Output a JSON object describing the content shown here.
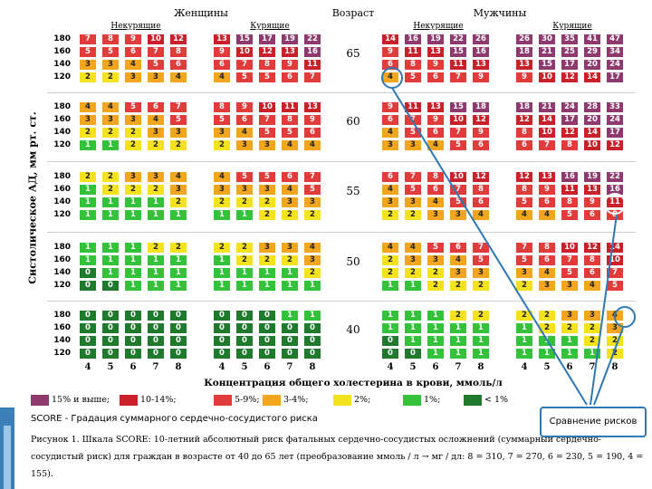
{
  "chart_data": {
    "type": "table",
    "title": "SCORE",
    "header": {
      "women": "Женщины",
      "age": "Возраст",
      "men": "Мужчины",
      "non_smokers": "Некурящие",
      "smokers": "Курящие"
    },
    "ylabel": "Систолическое АД, мм рт. ст.",
    "xlabel": "Концентрация общего холестерина в крови, ммоль/л",
    "bp_levels": [
      "180",
      "160",
      "140",
      "120"
    ],
    "cholesterol": [
      "4",
      "5",
      "6",
      "7",
      "8"
    ],
    "blocks": [
      {
        "age": "65",
        "women_non": [
          [
            "7",
            "8",
            "9",
            "10",
            "12"
          ],
          [
            "5",
            "5",
            "6",
            "7",
            "8"
          ],
          [
            "3",
            "3",
            "4",
            "5",
            "6"
          ],
          [
            "2",
            "2",
            "3",
            "3",
            "4"
          ]
        ],
        "women_smk": [
          [
            "13",
            "15",
            "17",
            "19",
            "22"
          ],
          [
            "9",
            "10",
            "12",
            "13",
            "16"
          ],
          [
            "6",
            "7",
            "8",
            "9",
            "11"
          ],
          [
            "4",
            "5",
            "5",
            "6",
            "7"
          ]
        ],
        "men_non": [
          [
            "14",
            "16",
            "19",
            "22",
            "26"
          ],
          [
            "9",
            "11",
            "13",
            "15",
            "16"
          ],
          [
            "6",
            "8",
            "9",
            "11",
            "13"
          ],
          [
            "4",
            "5",
            "6",
            "7",
            "9"
          ]
        ],
        "men_smk": [
          [
            "26",
            "30",
            "35",
            "41",
            "47"
          ],
          [
            "18",
            "21",
            "25",
            "29",
            "34"
          ],
          [
            "13",
            "15",
            "17",
            "20",
            "24"
          ],
          [
            "9",
            "10",
            "12",
            "14",
            "17"
          ]
        ]
      },
      {
        "age": "60",
        "women_non": [
          [
            "4",
            "4",
            "5",
            "6",
            "7"
          ],
          [
            "3",
            "3",
            "3",
            "4",
            "5"
          ],
          [
            "2",
            "2",
            "2",
            "3",
            "3"
          ],
          [
            "1",
            "1",
            "2",
            "2",
            "2"
          ]
        ],
        "women_smk": [
          [
            "8",
            "9",
            "10",
            "11",
            "13"
          ],
          [
            "5",
            "6",
            "7",
            "8",
            "9"
          ],
          [
            "3",
            "4",
            "5",
            "5",
            "6"
          ],
          [
            "2",
            "3",
            "3",
            "4",
            "4"
          ]
        ],
        "men_non": [
          [
            "9",
            "11",
            "13",
            "15",
            "18"
          ],
          [
            "6",
            "7",
            "9",
            "10",
            "12"
          ],
          [
            "4",
            "5",
            "6",
            "7",
            "9"
          ],
          [
            "3",
            "3",
            "4",
            "5",
            "6"
          ]
        ],
        "men_smk": [
          [
            "18",
            "21",
            "24",
            "28",
            "33"
          ],
          [
            "12",
            "14",
            "17",
            "20",
            "24"
          ],
          [
            "8",
            "10",
            "12",
            "14",
            "17"
          ],
          [
            "6",
            "7",
            "8",
            "10",
            "12"
          ]
        ]
      },
      {
        "age": "55",
        "women_non": [
          [
            "2",
            "2",
            "3",
            "3",
            "4"
          ],
          [
            "1",
            "2",
            "2",
            "2",
            "3"
          ],
          [
            "1",
            "1",
            "1",
            "1",
            "2"
          ],
          [
            "1",
            "1",
            "1",
            "1",
            "1"
          ]
        ],
        "women_smk": [
          [
            "4",
            "5",
            "5",
            "6",
            "7"
          ],
          [
            "3",
            "3",
            "3",
            "4",
            "5"
          ],
          [
            "2",
            "2",
            "2",
            "3",
            "3"
          ],
          [
            "1",
            "1",
            "2",
            "2",
            "2"
          ]
        ],
        "men_non": [
          [
            "6",
            "7",
            "8",
            "10",
            "12"
          ],
          [
            "4",
            "5",
            "6",
            "7",
            "8"
          ],
          [
            "3",
            "3",
            "4",
            "5",
            "6"
          ],
          [
            "2",
            "2",
            "3",
            "3",
            "4"
          ]
        ],
        "men_smk": [
          [
            "12",
            "13",
            "16",
            "19",
            "22"
          ],
          [
            "8",
            "9",
            "11",
            "13",
            "16"
          ],
          [
            "5",
            "6",
            "8",
            "9",
            "11"
          ],
          [
            "4",
            "4",
            "5",
            "6",
            "8"
          ]
        ]
      },
      {
        "age": "50",
        "women_non": [
          [
            "1",
            "1",
            "1",
            "2",
            "2"
          ],
          [
            "1",
            "1",
            "1",
            "1",
            "1"
          ],
          [
            "0",
            "1",
            "1",
            "1",
            "1"
          ],
          [
            "0",
            "0",
            "1",
            "1",
            "1"
          ]
        ],
        "women_smk": [
          [
            "2",
            "2",
            "3",
            "3",
            "4"
          ],
          [
            "1",
            "2",
            "2",
            "2",
            "3"
          ],
          [
            "1",
            "1",
            "1",
            "1",
            "2"
          ],
          [
            "1",
            "1",
            "1",
            "1",
            "1"
          ]
        ],
        "men_non": [
          [
            "4",
            "4",
            "5",
            "6",
            "7"
          ],
          [
            "2",
            "3",
            "3",
            "4",
            "5"
          ],
          [
            "2",
            "2",
            "2",
            "3",
            "3"
          ],
          [
            "1",
            "1",
            "2",
            "2",
            "2"
          ]
        ],
        "men_smk": [
          [
            "7",
            "8",
            "10",
            "12",
            "14"
          ],
          [
            "5",
            "6",
            "7",
            "8",
            "10"
          ],
          [
            "3",
            "4",
            "5",
            "6",
            "7"
          ],
          [
            "2",
            "3",
            "3",
            "4",
            "5"
          ]
        ]
      },
      {
        "age": "40",
        "women_non": [
          [
            "0",
            "0",
            "0",
            "0",
            "0"
          ],
          [
            "0",
            "0",
            "0",
            "0",
            "0"
          ],
          [
            "0",
            "0",
            "0",
            "0",
            "0"
          ],
          [
            "0",
            "0",
            "0",
            "0",
            "0"
          ]
        ],
        "women_smk": [
          [
            "0",
            "0",
            "0",
            "1",
            "1"
          ],
          [
            "0",
            "0",
            "0",
            "0",
            "0"
          ],
          [
            "0",
            "0",
            "0",
            "0",
            "0"
          ],
          [
            "0",
            "0",
            "0",
            "0",
            "0"
          ]
        ],
        "men_non": [
          [
            "1",
            "1",
            "1",
            "2",
            "2"
          ],
          [
            "1",
            "1",
            "1",
            "1",
            "1"
          ],
          [
            "0",
            "1",
            "1",
            "1",
            "1"
          ],
          [
            "0",
            "0",
            "1",
            "1",
            "1"
          ]
        ],
        "men_smk": [
          [
            "2",
            "2",
            "3",
            "3",
            "4"
          ],
          [
            "1",
            "2",
            "2",
            "2",
            "3"
          ],
          [
            "1",
            "1",
            "1",
            "2",
            "2"
          ],
          [
            "1",
            "1",
            "1",
            "1",
            "2"
          ]
        ]
      }
    ],
    "legend": [
      {
        "label": "15% и выше;",
        "color": "#8e3a6e"
      },
      {
        "label": "10-14%;",
        "color": "#c9202a"
      },
      {
        "label": "5-9%;",
        "color": "#e23b3b"
      },
      {
        "label": "3-4%;",
        "color": "#f2a61d"
      },
      {
        "label": "2%;",
        "color": "#f4e31c"
      },
      {
        "label": "1%;",
        "color": "#33c23a"
      },
      {
        "label": "< 1%",
        "color": "#1f7a2e"
      }
    ],
    "highlights": [
      "men_smk 55/140 chol 7 = 9",
      "men_non 65/120 chol 4 = 4",
      "men_smk 40/180 chol 8 = 4"
    ]
  },
  "score_caption": "SCORE - Градация суммарного сердечно-сосудистого риска",
  "figure_caption": "Рисунок 1. Шкала SCORE: 10-летний абсолютный риск фатальных сердечно-сосудистых осложнений (суммарный сердечно-сосудистый риск) для граждан в возрасте от 40 до 65 лет (преобразование ммоль / л → мг / дл: 8 = 310, 7 = 270, 6 = 230, 5 = 190, 4 = 155).",
  "callout": "Сравнение рисков",
  "colors": {
    "line": "#2f78b5",
    "grid_bg": "#f0f0f0"
  }
}
